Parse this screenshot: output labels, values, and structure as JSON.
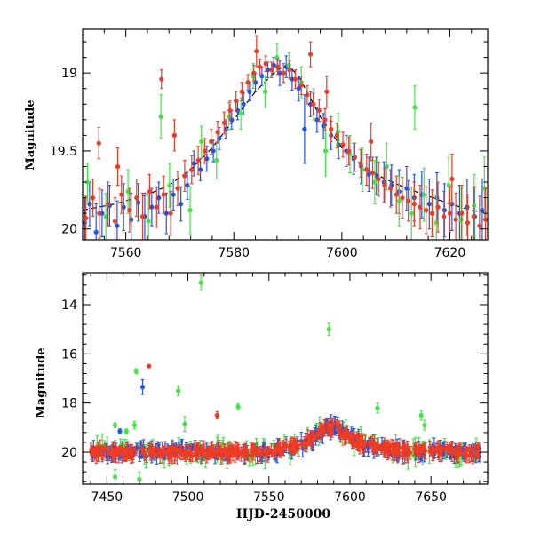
{
  "colors": {
    "green": "#44e444",
    "blue": "#1f55e6",
    "red": "#f03a22",
    "model": "#000000"
  },
  "chart_data": [
    {
      "type": "scatter",
      "title": "",
      "xlabel": "",
      "ylabel": "Magnitude",
      "xlim": [
        7552,
        7627
      ],
      "ylim": [
        20.07,
        18.72
      ],
      "y_inverted": true,
      "xticks": [
        7560,
        7580,
        7600,
        7620
      ],
      "yticks": [
        19,
        19.5,
        20
      ],
      "x_tick_labels": [
        "7560",
        "7580",
        "7600",
        "7620"
      ],
      "y_tick_labels": [
        "19",
        "19.5",
        "20"
      ],
      "grid": false,
      "legend": "none",
      "model_curve": {
        "style": "dashed",
        "x": [
          7552,
          7558,
          7564,
          7568,
          7572,
          7576,
          7580,
          7584,
          7588,
          7590,
          7592,
          7596,
          7600,
          7604,
          7608,
          7612,
          7616,
          7620,
          7624,
          7627
        ],
        "y": [
          19.88,
          19.84,
          19.78,
          19.72,
          19.62,
          19.48,
          19.3,
          19.12,
          18.98,
          18.95,
          19.02,
          19.28,
          19.48,
          19.6,
          19.68,
          19.74,
          19.79,
          19.84,
          19.88,
          19.9
        ]
      },
      "series": [
        {
          "color_key": "blue",
          "points": [
            [
              7552.4,
              19.96,
              0.16
            ],
            [
              7553.3,
              19.84,
              0.14
            ],
            [
              7554.5,
              20.02,
              0.18
            ],
            [
              7555.6,
              19.9,
              0.15
            ],
            [
              7557.0,
              19.85,
              0.13
            ],
            [
              7558.4,
              19.98,
              0.16
            ],
            [
              7559.6,
              19.86,
              0.15
            ],
            [
              7561.0,
              19.94,
              0.17
            ],
            [
              7562.3,
              19.83,
              0.12
            ],
            [
              7563.5,
              19.92,
              0.15
            ],
            [
              7564.8,
              19.86,
              0.12
            ],
            [
              7566.1,
              19.8,
              0.1
            ],
            [
              7567.5,
              19.9,
              0.13
            ],
            [
              7568.8,
              19.78,
              0.1
            ],
            [
              7570.2,
              19.84,
              0.11
            ],
            [
              7571.4,
              19.72,
              0.09
            ],
            [
              7572.6,
              19.58,
              0.08
            ],
            [
              7573.8,
              19.62,
              0.07
            ],
            [
              7575.0,
              19.55,
              0.08
            ],
            [
              7576.2,
              19.5,
              0.07
            ],
            [
              7577.3,
              19.42,
              0.07
            ],
            [
              7578.5,
              19.36,
              0.06
            ],
            [
              7579.6,
              19.3,
              0.06
            ],
            [
              7580.7,
              19.24,
              0.06
            ],
            [
              7581.8,
              19.2,
              0.07
            ],
            [
              7582.9,
              19.12,
              0.06
            ],
            [
              7584.0,
              19.06,
              0.06
            ],
            [
              7585.2,
              19.02,
              0.06
            ],
            [
              7586.3,
              18.98,
              0.05
            ],
            [
              7587.4,
              18.95,
              0.05
            ],
            [
              7588.5,
              19.0,
              0.08
            ],
            [
              7589.7,
              18.96,
              0.07
            ],
            [
              7590.8,
              19.04,
              0.07
            ],
            [
              7592.0,
              19.1,
              0.08
            ],
            [
              7593.1,
              19.36,
              0.22
            ],
            [
              7594.2,
              19.2,
              0.08
            ],
            [
              7595.4,
              19.3,
              0.08
            ],
            [
              7596.6,
              19.34,
              0.08
            ],
            [
              7598.0,
              19.4,
              0.09
            ],
            [
              7599.4,
              19.46,
              0.09
            ],
            [
              7600.8,
              19.5,
              0.1
            ],
            [
              7602.2,
              19.55,
              0.1
            ],
            [
              7603.6,
              19.6,
              0.11
            ],
            [
              7605.0,
              19.65,
              0.11
            ],
            [
              7606.4,
              19.66,
              0.12
            ],
            [
              7607.8,
              19.7,
              0.13
            ],
            [
              7609.2,
              19.72,
              0.13
            ],
            [
              7610.6,
              19.76,
              0.14
            ],
            [
              7612.0,
              19.74,
              0.14
            ],
            [
              7613.4,
              19.8,
              0.15
            ],
            [
              7614.8,
              19.78,
              0.15
            ],
            [
              7616.2,
              19.84,
              0.16
            ],
            [
              7617.6,
              19.8,
              0.16
            ],
            [
              7619.0,
              19.88,
              0.17
            ],
            [
              7620.4,
              19.84,
              0.17
            ],
            [
              7621.8,
              19.9,
              0.18
            ],
            [
              7623.2,
              19.86,
              0.18
            ],
            [
              7624.6,
              19.92,
              0.19
            ],
            [
              7626.0,
              19.88,
              0.2
            ]
          ]
        },
        {
          "color_key": "green",
          "points": [
            [
              7552.9,
              19.7,
              0.12
            ],
            [
              7556.3,
              19.92,
              0.15
            ],
            [
              7560.4,
              19.76,
              0.14
            ],
            [
              7564.2,
              19.95,
              0.16
            ],
            [
              7568.1,
              19.72,
              0.14
            ],
            [
              7571.9,
              19.88,
              0.15
            ],
            [
              7574.0,
              19.44,
              0.1
            ],
            [
              7576.8,
              19.56,
              0.12
            ],
            [
              7579.1,
              19.28,
              0.09
            ],
            [
              7581.3,
              19.26,
              0.1
            ],
            [
              7583.6,
              19.02,
              0.08
            ],
            [
              7585.8,
              19.12,
              0.1
            ],
            [
              7588.0,
              18.9,
              0.09
            ],
            [
              7590.2,
              18.95,
              0.08
            ],
            [
              7592.5,
              19.06,
              0.1
            ],
            [
              7594.8,
              19.2,
              0.1
            ],
            [
              7597.0,
              19.5,
              0.16
            ],
            [
              7599.3,
              19.38,
              0.12
            ],
            [
              7601.5,
              19.52,
              0.12
            ],
            [
              7603.8,
              19.62,
              0.14
            ],
            [
              7606.1,
              19.7,
              0.14
            ],
            [
              7608.3,
              19.6,
              0.15
            ],
            [
              7610.6,
              19.82,
              0.16
            ],
            [
              7612.9,
              19.9,
              0.17
            ],
            [
              7615.2,
              19.78,
              0.17
            ],
            [
              7617.5,
              19.96,
              0.18
            ],
            [
              7619.8,
              19.72,
              0.18
            ],
            [
              7622.1,
              19.94,
              0.2
            ],
            [
              7624.5,
              19.85,
              0.2
            ],
            [
              7626.4,
              19.74,
              0.2
            ],
            [
              7566.5,
              19.28,
              0.14
            ],
            [
              7613.5,
              19.22,
              0.14
            ]
          ]
        },
        {
          "color_key": "red",
          "points": [
            [
              7552.6,
              19.93,
              0.14
            ],
            [
              7553.9,
              19.8,
              0.12
            ],
            [
              7555.1,
              19.9,
              0.16
            ],
            [
              7556.7,
              19.84,
              0.14
            ],
            [
              7558.0,
              19.95,
              0.15
            ],
            [
              7559.2,
              19.78,
              0.12
            ],
            [
              7560.7,
              19.88,
              0.14
            ],
            [
              7562.0,
              19.8,
              0.12
            ],
            [
              7563.1,
              19.92,
              0.15
            ],
            [
              7564.4,
              19.76,
              0.11
            ],
            [
              7565.7,
              19.86,
              0.13
            ],
            [
              7567.0,
              19.78,
              0.12
            ],
            [
              7568.3,
              19.9,
              0.14
            ],
            [
              7569.6,
              19.74,
              0.11
            ],
            [
              7570.9,
              19.66,
              0.1
            ],
            [
              7572.2,
              19.62,
              0.09
            ],
            [
              7573.4,
              19.56,
              0.09
            ],
            [
              7574.6,
              19.5,
              0.08
            ],
            [
              7575.8,
              19.44,
              0.08
            ],
            [
              7577.0,
              19.38,
              0.07
            ],
            [
              7578.2,
              19.32,
              0.07
            ],
            [
              7579.3,
              19.24,
              0.06
            ],
            [
              7580.4,
              19.18,
              0.06
            ],
            [
              7581.5,
              19.12,
              0.06
            ],
            [
              7582.6,
              19.06,
              0.05
            ],
            [
              7583.7,
              19.0,
              0.05
            ],
            [
              7584.8,
              18.96,
              0.05
            ],
            [
              7585.9,
              18.94,
              0.05
            ],
            [
              7587.0,
              18.98,
              0.05
            ],
            [
              7588.1,
              18.96,
              0.05
            ],
            [
              7589.2,
              19.0,
              0.06
            ],
            [
              7590.3,
              18.98,
              0.06
            ],
            [
              7591.4,
              19.04,
              0.06
            ],
            [
              7592.5,
              19.08,
              0.06
            ],
            [
              7593.6,
              19.14,
              0.06
            ],
            [
              7594.7,
              19.2,
              0.07
            ],
            [
              7595.8,
              19.24,
              0.07
            ],
            [
              7596.9,
              19.3,
              0.07
            ],
            [
              7598.0,
              19.36,
              0.08
            ],
            [
              7599.1,
              19.4,
              0.08
            ],
            [
              7600.2,
              19.46,
              0.08
            ],
            [
              7601.3,
              19.5,
              0.09
            ],
            [
              7602.4,
              19.54,
              0.09
            ],
            [
              7603.5,
              19.58,
              0.09
            ],
            [
              7604.6,
              19.62,
              0.1
            ],
            [
              7605.7,
              19.64,
              0.1
            ],
            [
              7606.8,
              19.68,
              0.11
            ],
            [
              7607.9,
              19.72,
              0.11
            ],
            [
              7609.0,
              19.74,
              0.12
            ],
            [
              7610.1,
              19.78,
              0.12
            ],
            [
              7611.2,
              19.8,
              0.13
            ],
            [
              7612.3,
              19.82,
              0.13
            ],
            [
              7613.4,
              19.84,
              0.14
            ],
            [
              7614.5,
              19.86,
              0.14
            ],
            [
              7615.6,
              19.88,
              0.15
            ],
            [
              7616.7,
              19.9,
              0.15
            ],
            [
              7617.8,
              19.86,
              0.16
            ],
            [
              7618.9,
              19.92,
              0.16
            ],
            [
              7620.0,
              19.9,
              0.17
            ],
            [
              7621.1,
              19.94,
              0.17
            ],
            [
              7622.2,
              19.9,
              0.18
            ],
            [
              7623.3,
              19.96,
              0.18
            ],
            [
              7624.4,
              19.92,
              0.19
            ],
            [
              7625.5,
              19.98,
              0.19
            ],
            [
              7626.6,
              19.94,
              0.2
            ],
            [
              7555.0,
              19.45,
              0.1
            ],
            [
              7558.5,
              19.6,
              0.12
            ],
            [
              7566.6,
              19.04,
              0.06
            ],
            [
              7569.0,
              19.4,
              0.1
            ],
            [
              7584.2,
              18.86,
              0.1
            ],
            [
              7594.2,
              18.88,
              0.08
            ],
            [
              7597.2,
              19.12,
              0.1
            ],
            [
              7605.4,
              19.44,
              0.12
            ],
            [
              7620.4,
              19.68,
              0.16
            ]
          ]
        }
      ]
    },
    {
      "type": "scatter",
      "title": "",
      "xlabel": "HJD-2450000",
      "ylabel": "Magnitude",
      "xlim": [
        7435,
        7685
      ],
      "ylim": [
        21.3,
        12.7
      ],
      "y_inverted": true,
      "xticks": [
        7450,
        7500,
        7550,
        7600,
        7650
      ],
      "yticks": [
        14,
        16,
        18,
        20
      ],
      "x_tick_labels": [
        "7450",
        "7500",
        "7550",
        "7600",
        "7650"
      ],
      "y_tick_labels": [
        "14",
        "16",
        "18",
        "20"
      ],
      "grid": false,
      "legend": "none",
      "baseline": {
        "x": [
          7440,
          7550,
          7570,
          7580,
          7586,
          7592,
          7600,
          7615,
          7630,
          7680
        ],
        "y": [
          20.0,
          20.0,
          19.7,
          19.3,
          18.95,
          19.05,
          19.45,
          19.8,
          19.95,
          20.0
        ]
      },
      "outliers": [
        {
          "color_key": "green",
          "x": 7508,
          "y": 13.1,
          "err": 0.3
        },
        {
          "color_key": "green",
          "x": 7587,
          "y": 15.0,
          "err": 0.25
        },
        {
          "color_key": "green",
          "x": 7468,
          "y": 16.7,
          "err": 0.1
        },
        {
          "color_key": "red",
          "x": 7476,
          "y": 16.5,
          "err": 0.06
        },
        {
          "color_key": "blue",
          "x": 7472,
          "y": 17.35,
          "err": 0.3
        },
        {
          "color_key": "green",
          "x": 7494,
          "y": 17.5,
          "err": 0.2
        },
        {
          "color_key": "green",
          "x": 7467,
          "y": 18.9,
          "err": 0.15
        },
        {
          "color_key": "green",
          "x": 7498,
          "y": 18.85,
          "err": 0.3
        },
        {
          "color_key": "red",
          "x": 7518,
          "y": 18.5,
          "err": 0.15
        },
        {
          "color_key": "green",
          "x": 7531,
          "y": 18.15,
          "err": 0.12
        },
        {
          "color_key": "green",
          "x": 7455,
          "y": 18.9,
          "err": 0.1
        },
        {
          "color_key": "blue",
          "x": 7458,
          "y": 19.15,
          "err": 0.1
        },
        {
          "color_key": "green",
          "x": 7462,
          "y": 19.15,
          "err": 0.1
        },
        {
          "color_key": "green",
          "x": 7617,
          "y": 18.2,
          "err": 0.2
        },
        {
          "color_key": "green",
          "x": 7644,
          "y": 18.5,
          "err": 0.2
        },
        {
          "color_key": "green",
          "x": 7646,
          "y": 18.9,
          "err": 0.2
        },
        {
          "color_key": "green",
          "x": 7455,
          "y": 21.0,
          "err": 0.3
        },
        {
          "color_key": "green",
          "x": 7470,
          "y": 21.1,
          "err": 0.3
        }
      ]
    }
  ]
}
